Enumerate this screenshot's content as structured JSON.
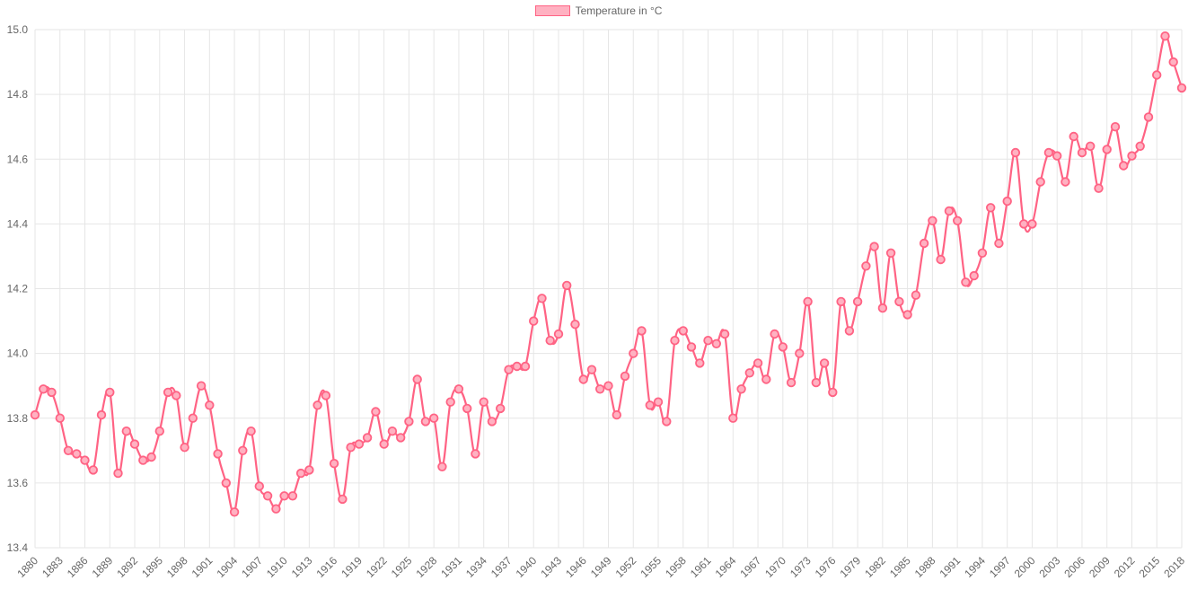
{
  "legend": {
    "label": "Temperature in °C"
  },
  "chart_data": {
    "type": "line",
    "title": "",
    "xlabel": "",
    "ylabel": "",
    "legend_position": "top",
    "grid": true,
    "xlim": [
      1880,
      2018
    ],
    "ylim": [
      13.4,
      15.0
    ],
    "y_tick_step": 0.2,
    "x_tick_step": 3,
    "y_tick_labels": [
      "15.0",
      "14.8",
      "14.6",
      "14.4",
      "14.2",
      "14.0",
      "13.8",
      "13.6",
      "13.4"
    ],
    "x_tick_labels": [
      "1880",
      "1883",
      "1886",
      "1889",
      "1892",
      "1895",
      "1898",
      "1901",
      "1904",
      "1907",
      "1910",
      "1913",
      "1916",
      "1919",
      "1922",
      "1925",
      "1928",
      "1931",
      "1934",
      "1937",
      "1940",
      "1943",
      "1946",
      "1949",
      "1952",
      "1955",
      "1958",
      "1961",
      "1964",
      "1967",
      "1970",
      "1973",
      "1976",
      "1979",
      "1982",
      "1985",
      "1988",
      "1991",
      "1994",
      "1997",
      "2000",
      "2003",
      "2006",
      "2009",
      "2012",
      "2015",
      "2018"
    ],
    "series": [
      {
        "name": "Temperature in °C",
        "x": [
          1880,
          1881,
          1882,
          1883,
          1884,
          1885,
          1886,
          1887,
          1888,
          1889,
          1890,
          1891,
          1892,
          1893,
          1894,
          1895,
          1896,
          1897,
          1898,
          1899,
          1900,
          1901,
          1902,
          1903,
          1904,
          1905,
          1906,
          1907,
          1908,
          1909,
          1910,
          1911,
          1912,
          1913,
          1914,
          1915,
          1916,
          1917,
          1918,
          1919,
          1920,
          1921,
          1922,
          1923,
          1924,
          1925,
          1926,
          1927,
          1928,
          1929,
          1930,
          1931,
          1932,
          1933,
          1934,
          1935,
          1936,
          1937,
          1938,
          1939,
          1940,
          1941,
          1942,
          1943,
          1944,
          1945,
          1946,
          1947,
          1948,
          1949,
          1950,
          1951,
          1952,
          1953,
          1954,
          1955,
          1956,
          1957,
          1958,
          1959,
          1960,
          1961,
          1962,
          1963,
          1964,
          1965,
          1966,
          1967,
          1968,
          1969,
          1970,
          1971,
          1972,
          1973,
          1974,
          1975,
          1976,
          1977,
          1978,
          1979,
          1980,
          1981,
          1982,
          1983,
          1984,
          1985,
          1986,
          1987,
          1988,
          1989,
          1990,
          1991,
          1992,
          1993,
          1994,
          1995,
          1996,
          1997,
          1998,
          1999,
          2000,
          2001,
          2002,
          2003,
          2004,
          2005,
          2006,
          2007,
          2008,
          2009,
          2010,
          2011,
          2012,
          2013,
          2014,
          2015,
          2016,
          2017,
          2018
        ],
        "values": [
          13.81,
          13.89,
          13.88,
          13.8,
          13.7,
          13.69,
          13.67,
          13.64,
          13.81,
          13.88,
          13.63,
          13.76,
          13.72,
          13.67,
          13.68,
          13.76,
          13.88,
          13.87,
          13.71,
          13.8,
          13.9,
          13.84,
          13.69,
          13.6,
          13.51,
          13.7,
          13.76,
          13.59,
          13.56,
          13.52,
          13.56,
          13.56,
          13.63,
          13.64,
          13.84,
          13.87,
          13.66,
          13.55,
          13.71,
          13.72,
          13.74,
          13.82,
          13.72,
          13.76,
          13.74,
          13.79,
          13.92,
          13.79,
          13.8,
          13.65,
          13.85,
          13.89,
          13.83,
          13.69,
          13.85,
          13.79,
          13.83,
          13.95,
          13.96,
          13.96,
          14.1,
          14.17,
          14.04,
          14.06,
          14.21,
          14.09,
          13.92,
          13.95,
          13.89,
          13.9,
          13.81,
          13.93,
          14.0,
          14.07,
          13.84,
          13.85,
          13.79,
          14.04,
          14.07,
          14.02,
          13.97,
          14.04,
          14.03,
          14.06,
          13.8,
          13.89,
          13.94,
          13.97,
          13.92,
          14.06,
          14.02,
          13.91,
          14.0,
          14.16,
          13.91,
          13.97,
          13.88,
          14.16,
          14.07,
          14.16,
          14.27,
          14.33,
          14.14,
          14.31,
          14.16,
          14.12,
          14.18,
          14.34,
          14.41,
          14.29,
          14.44,
          14.41,
          14.22,
          14.24,
          14.31,
          14.45,
          14.34,
          14.47,
          14.62,
          14.4,
          14.4,
          14.53,
          14.62,
          14.61,
          14.53,
          14.67,
          14.62,
          14.64,
          14.51,
          14.63,
          14.7,
          14.58,
          14.61,
          14.64,
          14.73,
          14.86,
          14.98,
          14.9,
          14.82
        ]
      }
    ],
    "colors": {
      "line": "#ff6384",
      "point_fill": "#ffb1c1",
      "point_border": "#ff6384",
      "grid": "#e6e6e6",
      "tick_text": "#666666",
      "legend_fill": "#ffb1c1",
      "legend_border": "#ff6384"
    }
  }
}
